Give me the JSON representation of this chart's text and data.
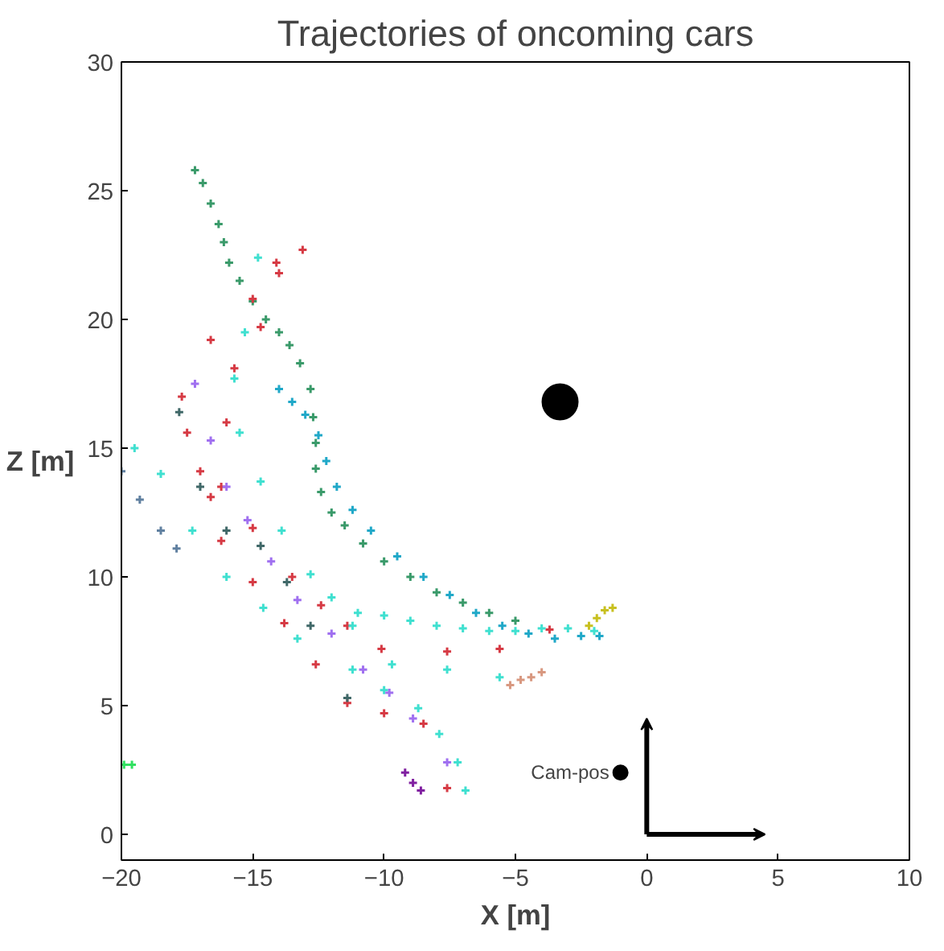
{
  "chart_data": {
    "type": "scatter",
    "title": "Trajectories of oncoming cars",
    "xlabel": "X [m]",
    "ylabel": "Z [m]",
    "xlim": [
      -20,
      10
    ],
    "ylim": [
      -1,
      30
    ],
    "xticks": [
      -20,
      -15,
      -10,
      -5,
      0,
      5,
      10
    ],
    "yticks": [
      0,
      5,
      10,
      15,
      20,
      25,
      30
    ],
    "grid": false,
    "marker": "cross",
    "series": [
      {
        "color": "#3a9a6a",
        "x": [
          -17.2,
          -16.9,
          -16.6,
          -16.3,
          -16.1,
          -15.9,
          -15.5,
          -15.0,
          -14.5,
          -14.0,
          -13.6,
          -13.2,
          -12.8,
          -12.7,
          -12.6,
          -12.6,
          -12.4,
          -12.0,
          -11.5,
          -10.8,
          -10.0,
          -9.0,
          -8.0,
          -7.0,
          -6.0,
          -5.0
        ],
        "values": [
          25.8,
          25.3,
          24.5,
          23.7,
          23.0,
          22.2,
          21.5,
          20.7,
          20.0,
          19.5,
          19.0,
          18.3,
          17.3,
          16.2,
          15.2,
          14.2,
          13.3,
          12.5,
          12.0,
          11.3,
          10.6,
          10.0,
          9.4,
          9.0,
          8.6,
          8.3
        ]
      },
      {
        "color": "#20a8c8",
        "x": [
          -14.0,
          -13.5,
          -13.0,
          -12.5,
          -12.2,
          -11.8,
          -11.2,
          -10.5,
          -9.5,
          -8.5,
          -7.5,
          -6.5,
          -5.5,
          -4.5,
          -3.5,
          -2.5,
          -1.8
        ],
        "values": [
          17.3,
          16.8,
          16.3,
          15.5,
          14.5,
          13.5,
          12.6,
          11.8,
          10.8,
          10.0,
          9.3,
          8.6,
          8.1,
          7.8,
          7.6,
          7.7,
          7.7
        ]
      },
      {
        "color": "#d63a44",
        "x": [
          -13.1,
          -14.0,
          -15.0,
          -16.6,
          -17.7,
          -17.5,
          -17.0,
          -16.6,
          -16.2,
          -15.0,
          -13.8,
          -12.6,
          -11.4,
          -10.0,
          -8.5,
          -7.6
        ],
        "values": [
          22.7,
          21.8,
          20.8,
          19.2,
          17.0,
          15.6,
          14.1,
          13.1,
          11.4,
          9.8,
          8.2,
          6.6,
          5.1,
          4.7,
          4.3,
          1.8
        ]
      },
      {
        "color": "#d63a44",
        "x": [
          -14.1,
          -14.7,
          -15.7,
          -16.0,
          -16.2,
          -15.0,
          -13.5,
          -12.4,
          -11.4,
          -10.1,
          -7.6,
          -5.6,
          -3.7
        ],
        "values": [
          22.2,
          19.7,
          18.1,
          16.0,
          13.5,
          11.9,
          10.0,
          8.9,
          8.1,
          7.2,
          7.1,
          7.2,
          7.95
        ]
      },
      {
        "color": "#40e0d0",
        "x": [
          -19.5,
          -18.5,
          -17.3,
          -16.0,
          -14.6,
          -13.3,
          -11.2,
          -10.0,
          -8.7,
          -7.9,
          -7.2,
          -6.9
        ],
        "values": [
          15.0,
          14.0,
          11.8,
          10.0,
          8.8,
          7.6,
          6.4,
          5.6,
          4.9,
          3.9,
          2.8,
          1.7
        ]
      },
      {
        "color": "#40e0d0",
        "x": [
          -14.8,
          -15.3,
          -15.7,
          -15.5,
          -14.7,
          -13.9,
          -12.8,
          -11.2,
          -9.7,
          -7.6,
          -5.6
        ],
        "values": [
          22.4,
          19.5,
          17.7,
          15.6,
          13.7,
          11.8,
          10.1,
          8.1,
          6.6,
          6.4,
          6.1
        ]
      },
      {
        "color": "#40e0d0",
        "x": [
          -12.0,
          -11.0,
          -10.0,
          -9.0,
          -8.0,
          -7.0,
          -6.0,
          -5.0,
          -4.0,
          -3.0,
          -2.0
        ],
        "values": [
          9.2,
          8.6,
          8.5,
          8.3,
          8.1,
          8.0,
          7.9,
          7.9,
          8.0,
          8.0,
          7.9
        ]
      },
      {
        "color": "#a070f0",
        "x": [
          -17.2,
          -16.6,
          -16.0,
          -15.2,
          -14.3,
          -13.3,
          -12.0,
          -10.8,
          -9.8,
          -8.9,
          -7.6
        ],
        "values": [
          17.5,
          15.3,
          13.5,
          12.2,
          10.6,
          9.1,
          7.8,
          6.4,
          5.5,
          4.5,
          2.8
        ]
      },
      {
        "color": "#406868",
        "x": [
          -17.8,
          -17.0,
          -16.0,
          -14.7,
          -13.7,
          -12.8,
          -11.4
        ],
        "values": [
          16.4,
          13.5,
          11.8,
          11.2,
          9.8,
          8.1,
          5.3
        ]
      },
      {
        "color": "#6080a0",
        "x": [
          -20.0,
          -19.3,
          -18.5,
          -17.9
        ],
        "values": [
          14.1,
          13.0,
          11.8,
          11.1
        ]
      },
      {
        "color": "#30e060",
        "x": [
          -19.9,
          -19.6
        ],
        "values": [
          2.7,
          2.7
        ]
      },
      {
        "color": "#c8c020",
        "x": [
          -2.2,
          -1.9,
          -1.6,
          -1.3
        ],
        "values": [
          8.1,
          8.4,
          8.7,
          8.8
        ]
      },
      {
        "color": "#d89880",
        "x": [
          -5.2,
          -4.8,
          -4.4,
          -4.0
        ],
        "values": [
          5.8,
          6.0,
          6.1,
          6.3
        ]
      },
      {
        "color": "#8020a0",
        "x": [
          -9.2,
          -8.9,
          -8.6
        ],
        "values": [
          2.4,
          2.0,
          1.7
        ]
      },
      {
        "color": "#000000",
        "x": [
          -3.3
        ],
        "values": [
          16.8
        ],
        "marker": "circle"
      },
      {
        "color": "#000000",
        "x": [
          -1.0
        ],
        "values": [
          2.4
        ],
        "marker": "circle"
      }
    ],
    "annotations": [
      {
        "text": "Cam-pos",
        "x": -1.0,
        "y": 2.4
      }
    ]
  }
}
